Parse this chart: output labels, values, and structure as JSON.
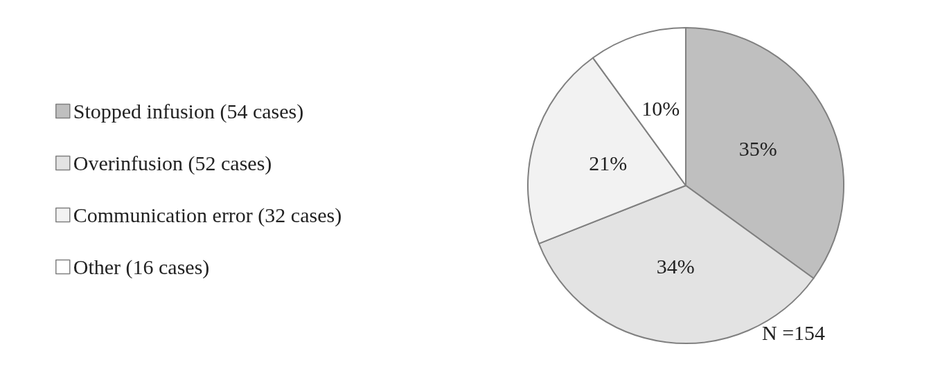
{
  "chart_data": {
    "type": "pie",
    "categories": [
      "Stopped infusion (54 cases)",
      "Overinfusion (52 cases)",
      "Communication error (32 cases)",
      "Other (16 cases)"
    ],
    "values": [
      35,
      34,
      21,
      10
    ],
    "colors": [
      "#bfbfbf",
      "#e3e3e3",
      "#f2f2f2",
      "#ffffff"
    ],
    "value_labels": [
      "35%",
      "34%",
      "21%",
      "10%"
    ],
    "legend": "left",
    "annotations": [
      "N =154"
    ]
  }
}
